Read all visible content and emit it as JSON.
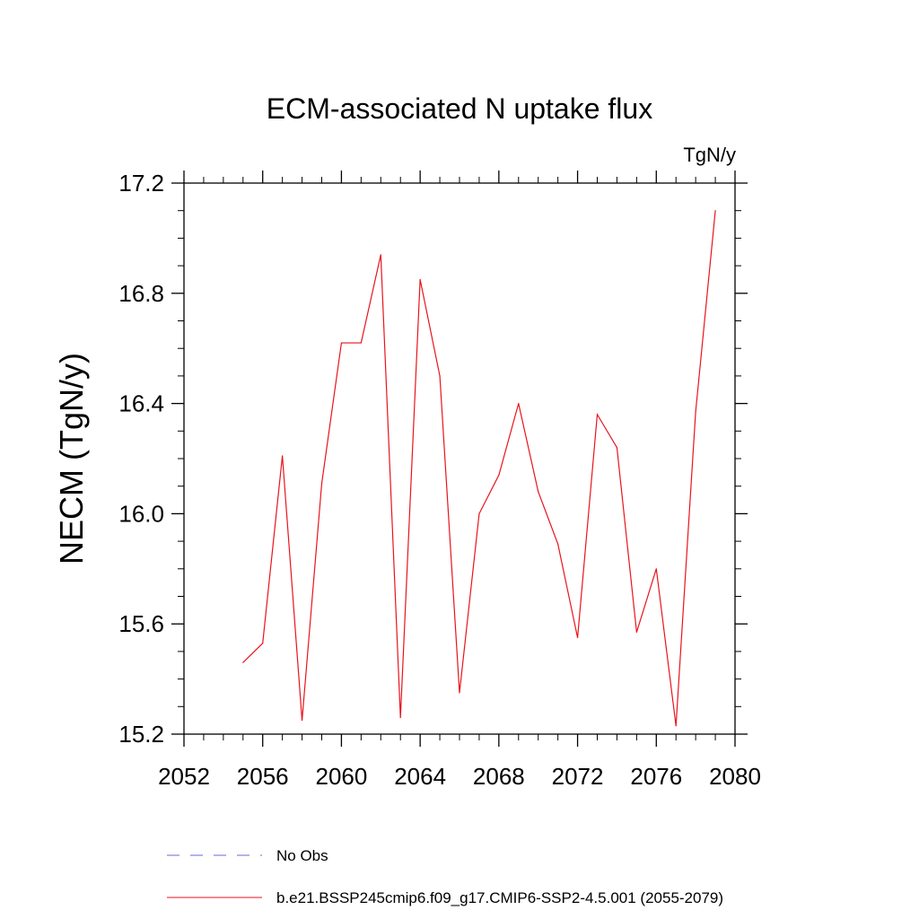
{
  "chart_data": {
    "type": "line",
    "title": "ECM-associated N uptake flux",
    "units_label": "TgN/y",
    "xlabel": "",
    "ylabel": "NECM  (TgN/y)",
    "xlim": [
      2052,
      2080
    ],
    "ylim": [
      15.2,
      17.2
    ],
    "x_ticks": [
      2052,
      2056,
      2060,
      2064,
      2068,
      2072,
      2076,
      2080
    ],
    "y_ticks": [
      15.2,
      15.6,
      16.0,
      16.4,
      16.8,
      17.2
    ],
    "y_tick_labels": [
      "15.2",
      "15.6",
      "16.0",
      "16.4",
      "16.8",
      "17.2"
    ],
    "grid": false,
    "legend_position": "bottom",
    "series": [
      {
        "name": "b.e21.BSSP245cmip6.f09_g17.CMIP6-SSP2-4.5.001 (2055-2079)",
        "color": "#e8141c",
        "line_style": "solid",
        "x": [
          2055,
          2056,
          2057,
          2058,
          2059,
          2060,
          2061,
          2062,
          2063,
          2064,
          2065,
          2066,
          2067,
          2068,
          2069,
          2070,
          2071,
          2072,
          2073,
          2074,
          2075,
          2076,
          2077,
          2078,
          2079
        ],
        "y": [
          15.46,
          15.53,
          16.21,
          15.25,
          16.11,
          16.62,
          16.62,
          16.94,
          15.26,
          16.85,
          16.5,
          15.35,
          16.0,
          16.14,
          16.4,
          16.08,
          15.89,
          15.55,
          16.36,
          16.24,
          15.57,
          15.8,
          15.23,
          16.37,
          17.1
        ]
      },
      {
        "name": "No Obs",
        "color": "#6a6ad0",
        "line_style": "dashed",
        "x": [],
        "y": []
      }
    ]
  }
}
